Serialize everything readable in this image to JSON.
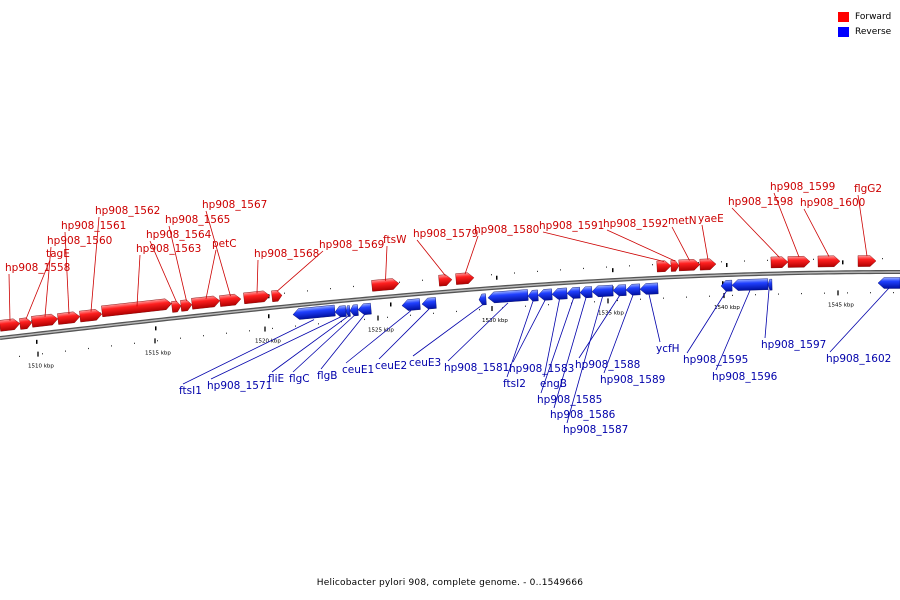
{
  "legend": {
    "forward_label": "Forward",
    "reverse_label": "Reverse",
    "forward_color": "#ff0000",
    "reverse_color": "#0000ff"
  },
  "caption": "Helicobacter pylori 908, complete genome. - 0..1549666",
  "colors": {
    "forward": "#ff1a1a",
    "reverse": "#1a3cff",
    "forward_label": "#cc0000",
    "reverse_label": "#0000aa",
    "backbone": "#888888"
  },
  "ticks": [
    {
      "label": "1510 kbp",
      "position_kbp": 1510
    },
    {
      "label": "1515 kbp",
      "position_kbp": 1515
    },
    {
      "label": "1520 kbp",
      "position_kbp": 1520
    },
    {
      "label": "1525 kbp",
      "position_kbp": 1525
    },
    {
      "label": "1530 kbp",
      "position_kbp": 1530
    },
    {
      "label": "1535 kbp",
      "position_kbp": 1535
    },
    {
      "label": "1540 kbp",
      "position_kbp": 1540
    },
    {
      "label": "1545 kbp",
      "position_kbp": 1545
    }
  ],
  "genes": [
    {
      "name": "hp908_1558",
      "strand": "forward"
    },
    {
      "name": "tagE",
      "strand": "forward"
    },
    {
      "name": "hp908_1560",
      "strand": "forward"
    },
    {
      "name": "hp908_1561",
      "strand": "forward"
    },
    {
      "name": "hp908_1562",
      "strand": "forward"
    },
    {
      "name": "hp908_1563",
      "strand": "forward"
    },
    {
      "name": "hp908_1564",
      "strand": "forward"
    },
    {
      "name": "hp908_1565",
      "strand": "forward"
    },
    {
      "name": "petC",
      "strand": "forward"
    },
    {
      "name": "hp908_1567",
      "strand": "forward"
    },
    {
      "name": "hp908_1568",
      "strand": "forward"
    },
    {
      "name": "hp908_1569",
      "strand": "forward"
    },
    {
      "name": "ftsW",
      "strand": "forward"
    },
    {
      "name": "hp908_1579",
      "strand": "forward"
    },
    {
      "name": "hp908_1580",
      "strand": "forward"
    },
    {
      "name": "hp908_1591",
      "strand": "forward"
    },
    {
      "name": "hp908_1592",
      "strand": "forward"
    },
    {
      "name": "metN",
      "strand": "forward"
    },
    {
      "name": "yaeE",
      "strand": "forward"
    },
    {
      "name": "hp908_1598",
      "strand": "forward"
    },
    {
      "name": "hp908_1599",
      "strand": "forward"
    },
    {
      "name": "hp908_1600",
      "strand": "forward"
    },
    {
      "name": "flgG2",
      "strand": "forward"
    },
    {
      "name": "ftsI1",
      "strand": "reverse"
    },
    {
      "name": "hp908_1571",
      "strand": "reverse"
    },
    {
      "name": "fliE",
      "strand": "reverse"
    },
    {
      "name": "flgC",
      "strand": "reverse"
    },
    {
      "name": "flgB",
      "strand": "reverse"
    },
    {
      "name": "ceuE1",
      "strand": "reverse"
    },
    {
      "name": "ceuE2",
      "strand": "reverse"
    },
    {
      "name": "ceuE3",
      "strand": "reverse"
    },
    {
      "name": "hp908_1581",
      "strand": "reverse"
    },
    {
      "name": "ftsI2",
      "strand": "reverse"
    },
    {
      "name": "hp908_1583",
      "strand": "reverse"
    },
    {
      "name": "engB",
      "strand": "reverse"
    },
    {
      "name": "hp908_1585",
      "strand": "reverse"
    },
    {
      "name": "hp908_1586",
      "strand": "reverse"
    },
    {
      "name": "hp908_1587",
      "strand": "reverse"
    },
    {
      "name": "hp908_1588",
      "strand": "reverse"
    },
    {
      "name": "hp908_1589",
      "strand": "reverse"
    },
    {
      "name": "ycfH",
      "strand": "reverse"
    },
    {
      "name": "hp908_1595",
      "strand": "reverse"
    },
    {
      "name": "hp908_1596",
      "strand": "reverse"
    },
    {
      "name": "hp908_1597",
      "strand": "reverse"
    },
    {
      "name": "hp908_1602",
      "strand": "reverse"
    }
  ]
}
